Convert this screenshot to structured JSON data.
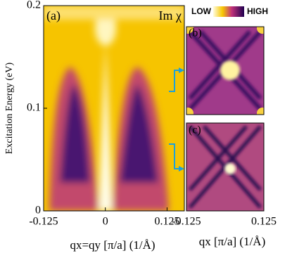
{
  "chart_data": [
    {
      "type": "heatmap",
      "panel_label": "(a)",
      "annotation": "Im χ",
      "xlabel": "qx=qy [π/a] (1/Å)",
      "ylabel": "Excitation Energy (eV)",
      "xlim": [
        -0.125,
        0.16
      ],
      "xticks": [
        -0.125,
        0,
        0.125
      ],
      "ylim": [
        0,
        0.2
      ],
      "yticks": [
        0,
        0.1,
        0.2
      ]
    },
    {
      "type": "heatmap",
      "panel_label": "(b)",
      "colorbar_labels": [
        "LOW",
        "HIGH"
      ],
      "xlim": [
        -0.125,
        0.125
      ]
    },
    {
      "type": "heatmap",
      "panel_label": "(c)",
      "xlabel": "qx [π/a] (1/Å)",
      "xlim": [
        -0.125,
        0.125
      ],
      "xticks": [
        -0.125,
        0.125
      ]
    }
  ]
}
